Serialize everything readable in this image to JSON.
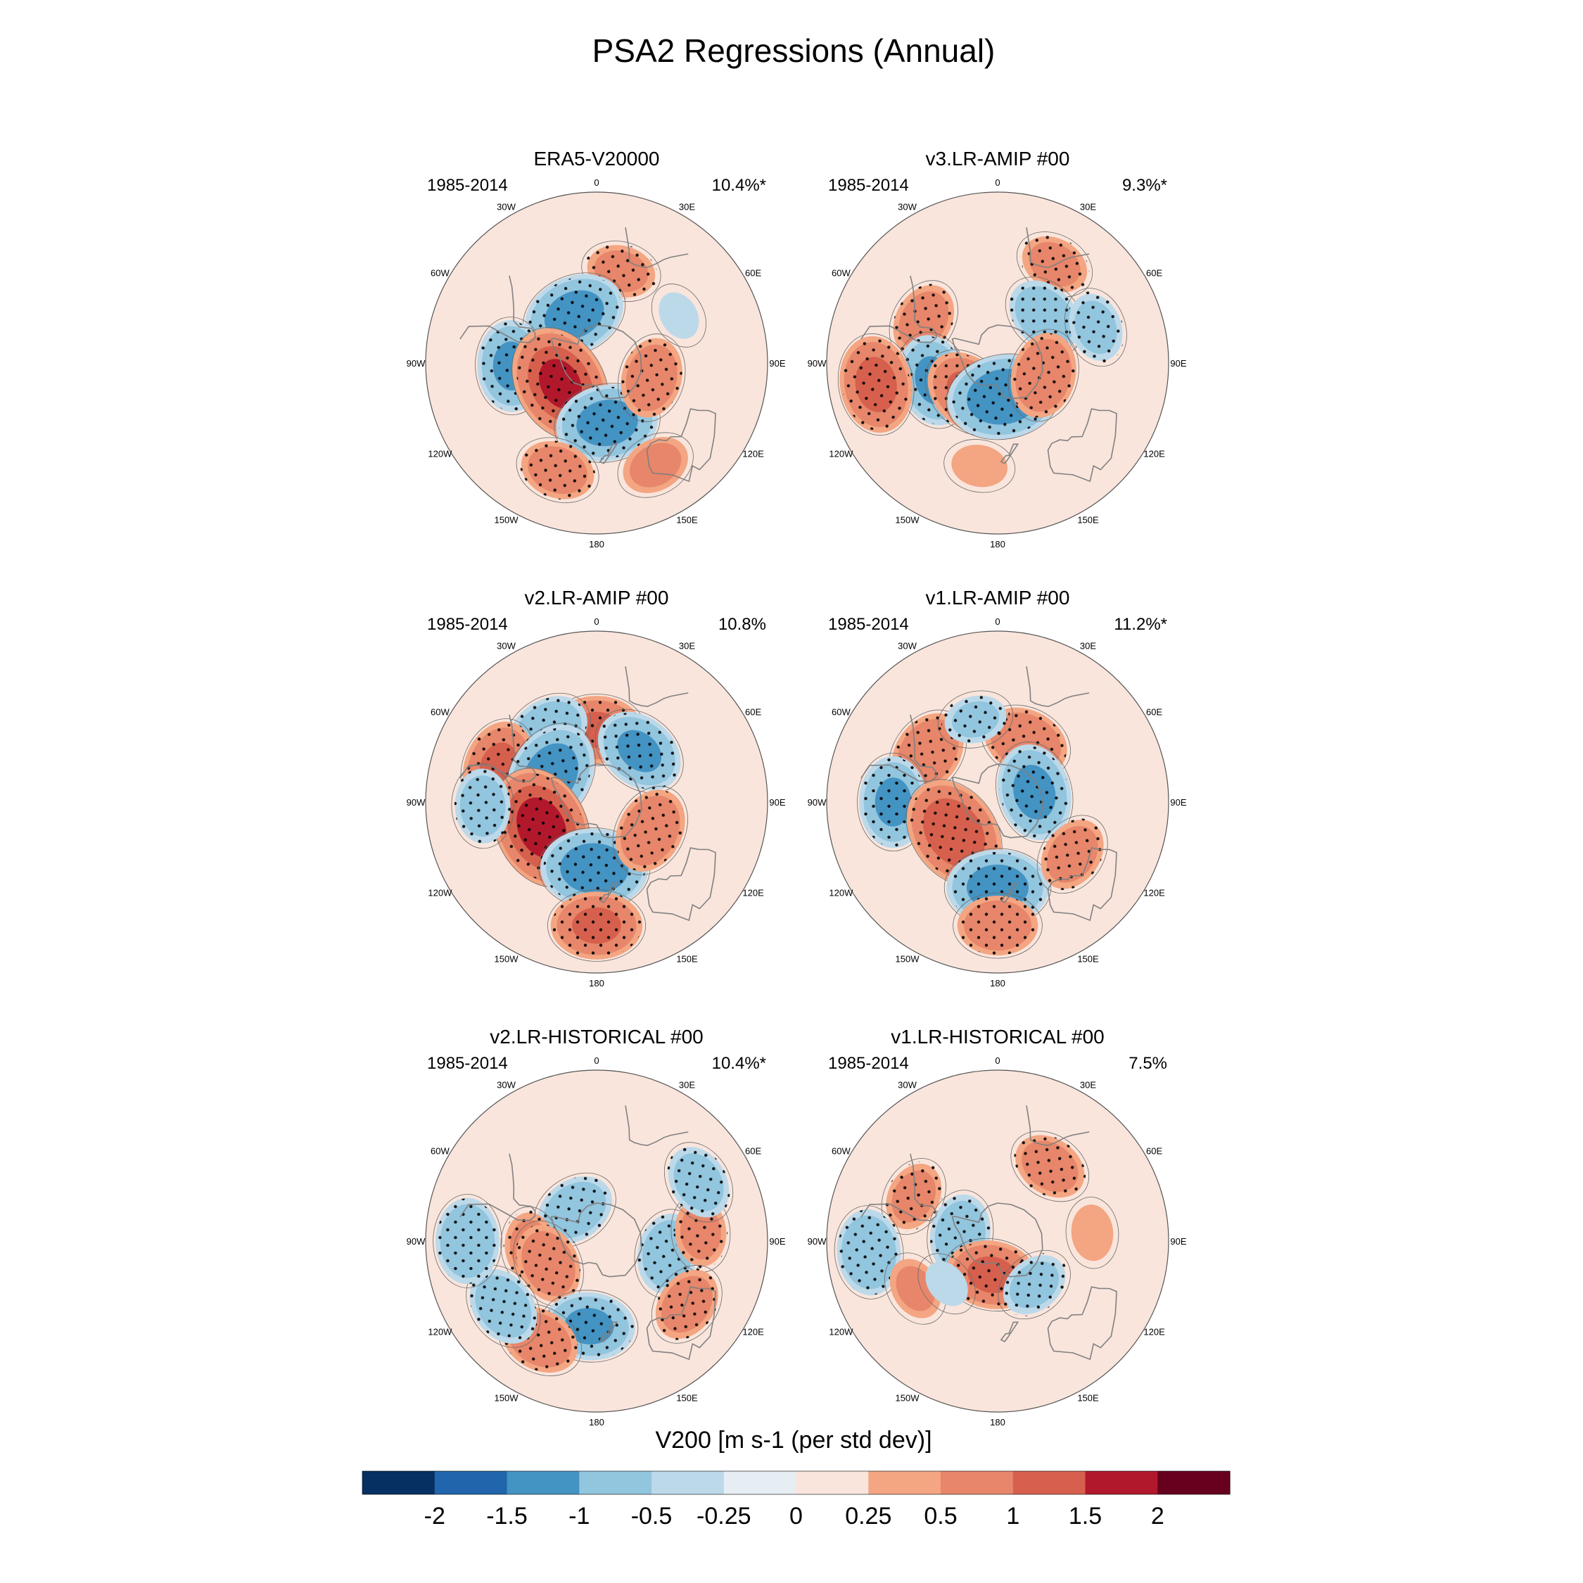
{
  "chart_data": {
    "type": "polar-stereographic-map-panels",
    "title": "PSA2 Regressions (Annual)",
    "panels": [
      {
        "name": "ERA5-V20000",
        "period": "1985-2014",
        "variance": "10.4%*",
        "anomalies": [
          {
            "lon": 15,
            "lat": -40,
            "value": 0.6,
            "stipple": true
          },
          {
            "lon": 335,
            "lat": -62,
            "value": -1.2,
            "stipple": true
          },
          {
            "lon": 268,
            "lat": -45,
            "value": -1.0,
            "stipple": true
          },
          {
            "lon": 240,
            "lat": -68,
            "value": 1.5,
            "stipple": true
          },
          {
            "lon": 170,
            "lat": -58,
            "value": -1.2,
            "stipple": true
          },
          {
            "lon": 105,
            "lat": -60,
            "value": 0.8,
            "stipple": true
          },
          {
            "lon": 200,
            "lat": -30,
            "value": 0.7,
            "stipple": true
          },
          {
            "lon": 150,
            "lat": -28,
            "value": 0.6,
            "stipple": false
          },
          {
            "lon": 60,
            "lat": -40,
            "value": -0.3,
            "stipple": false
          }
        ]
      },
      {
        "name": "v3.LR-AMIP  #00",
        "period": "1985-2014",
        "variance": "9.3%*",
        "anomalies": [
          {
            "lon": 30,
            "lat": -30,
            "value": 0.6,
            "stipple": true
          },
          {
            "lon": 300,
            "lat": -45,
            "value": 0.7,
            "stipple": true
          },
          {
            "lon": 45,
            "lat": -55,
            "value": -0.8,
            "stipple": true
          },
          {
            "lon": 255,
            "lat": -55,
            "value": -1.0,
            "stipple": true
          },
          {
            "lon": 225,
            "lat": -68,
            "value": 1.0,
            "stipple": true
          },
          {
            "lon": 170,
            "lat": -72,
            "value": -1.4,
            "stipple": true
          },
          {
            "lon": 105,
            "lat": -65,
            "value": 0.9,
            "stipple": true
          },
          {
            "lon": 70,
            "lat": -35,
            "value": -0.6,
            "stipple": true
          },
          {
            "lon": 260,
            "lat": -25,
            "value": 1.1,
            "stipple": true
          },
          {
            "lon": 190,
            "lat": -35,
            "value": 0.4,
            "stipple": false
          }
        ]
      },
      {
        "name": "v2.LR-AMIP  #00",
        "period": "1985-2014",
        "variance": "10.8%",
        "anomalies": [
          {
            "lon": 0,
            "lat": -52,
            "value": 1.0,
            "stipple": true
          },
          {
            "lon": 325,
            "lat": -45,
            "value": -0.9,
            "stipple": true
          },
          {
            "lon": 290,
            "lat": -35,
            "value": 1.0,
            "stipple": true
          },
          {
            "lon": 300,
            "lat": -62,
            "value": -1.3,
            "stipple": true
          },
          {
            "lon": 40,
            "lat": -55,
            "value": -1.0,
            "stipple": true
          },
          {
            "lon": 245,
            "lat": -58,
            "value": 1.7,
            "stipple": true
          },
          {
            "lon": 182,
            "lat": -55,
            "value": -1.3,
            "stipple": true
          },
          {
            "lon": 118,
            "lat": -58,
            "value": 0.9,
            "stipple": true
          },
          {
            "lon": 268,
            "lat": -30,
            "value": -0.7,
            "stipple": true
          },
          {
            "lon": 180,
            "lat": -25,
            "value": 1.0,
            "stipple": true
          }
        ]
      },
      {
        "name": "v1.LR-AMIP  #00",
        "period": "1985-2014",
        "variance": "11.2%*",
        "anomalies": [
          {
            "lon": 305,
            "lat": -45,
            "value": 0.9,
            "stipple": true
          },
          {
            "lon": 25,
            "lat": -55,
            "value": 0.9,
            "stipple": true
          },
          {
            "lon": 345,
            "lat": -45,
            "value": -0.5,
            "stipple": true
          },
          {
            "lon": 270,
            "lat": -35,
            "value": -1.0,
            "stipple": true
          },
          {
            "lon": 235,
            "lat": -62,
            "value": 1.4,
            "stipple": true
          },
          {
            "lon": 75,
            "lat": -70,
            "value": -1.1,
            "stipple": true
          },
          {
            "lon": 180,
            "lat": -45,
            "value": -1.2,
            "stipple": true
          },
          {
            "lon": 125,
            "lat": -42,
            "value": 0.7,
            "stipple": true
          },
          {
            "lon": 180,
            "lat": -25,
            "value": 0.8,
            "stipple": true
          }
        ]
      },
      {
        "name": "v2.LR-HISTORICAL  #00",
        "period": "1985-2014",
        "variance": "10.4%*",
        "anomalies": [
          {
            "lon": 325,
            "lat": -70,
            "value": -0.8,
            "stipple": true
          },
          {
            "lon": 265,
            "lat": -55,
            "value": 0.6,
            "stipple": true
          },
          {
            "lon": 245,
            "lat": -62,
            "value": 0.8,
            "stipple": true
          },
          {
            "lon": 100,
            "lat": -52,
            "value": -0.8,
            "stipple": true
          },
          {
            "lon": 85,
            "lat": -35,
            "value": 0.6,
            "stipple": true
          },
          {
            "lon": 60,
            "lat": -28,
            "value": -0.7,
            "stipple": true
          },
          {
            "lon": 125,
            "lat": -32,
            "value": 0.7,
            "stipple": true
          },
          {
            "lon": 185,
            "lat": -45,
            "value": -1.0,
            "stipple": true
          },
          {
            "lon": 210,
            "lat": -30,
            "value": 0.8,
            "stipple": true
          },
          {
            "lon": 235,
            "lat": -30,
            "value": -0.8,
            "stipple": true
          },
          {
            "lon": 270,
            "lat": -22,
            "value": -0.9,
            "stipple": true
          }
        ]
      },
      {
        "name": "v1.LR-HISTORICAL  #00",
        "period": "1985-2014",
        "variance": "7.5%",
        "anomalies": [
          {
            "lon": 298,
            "lat": -40,
            "value": 0.6,
            "stipple": true
          },
          {
            "lon": 35,
            "lat": -42,
            "value": 0.7,
            "stipple": true
          },
          {
            "lon": 280,
            "lat": -70,
            "value": -0.8,
            "stipple": true
          },
          {
            "lon": 190,
            "lat": -72,
            "value": 1.0,
            "stipple": true
          },
          {
            "lon": 140,
            "lat": -60,
            "value": -0.6,
            "stipple": true
          },
          {
            "lon": 265,
            "lat": -22,
            "value": -0.9,
            "stipple": true
          },
          {
            "lon": 85,
            "lat": -40,
            "value": 0.4,
            "stipple": false
          },
          {
            "lon": 240,
            "lat": -40,
            "value": 0.5,
            "stipple": false
          },
          {
            "lon": 230,
            "lat": -55,
            "value": -0.3,
            "stipple": false
          }
        ]
      }
    ],
    "longitude_labels": [
      "0",
      "30E",
      "60E",
      "90E",
      "120E",
      "150E",
      "180",
      "150W",
      "120W",
      "90W",
      "60W",
      "30W"
    ],
    "colorbar": {
      "title": "V200 [m s-1 (per std dev)]",
      "tick_labels": [
        "-2",
        "-1.5",
        "-1",
        "-0.5",
        "-0.25",
        "0",
        "0.25",
        "0.5",
        "1",
        "1.5",
        "2"
      ],
      "levels": [
        -2,
        -1.5,
        -1,
        -0.5,
        -0.25,
        0,
        0.25,
        0.5,
        1,
        1.5,
        2
      ],
      "colors": [
        "#053061",
        "#2166ac",
        "#4393c3",
        "#92c5de",
        "#bcd9ea",
        "#e6eef4",
        "#f9e5dc",
        "#f4a582",
        "#e7866a",
        "#d6604d",
        "#b2182b",
        "#67001f"
      ]
    }
  }
}
